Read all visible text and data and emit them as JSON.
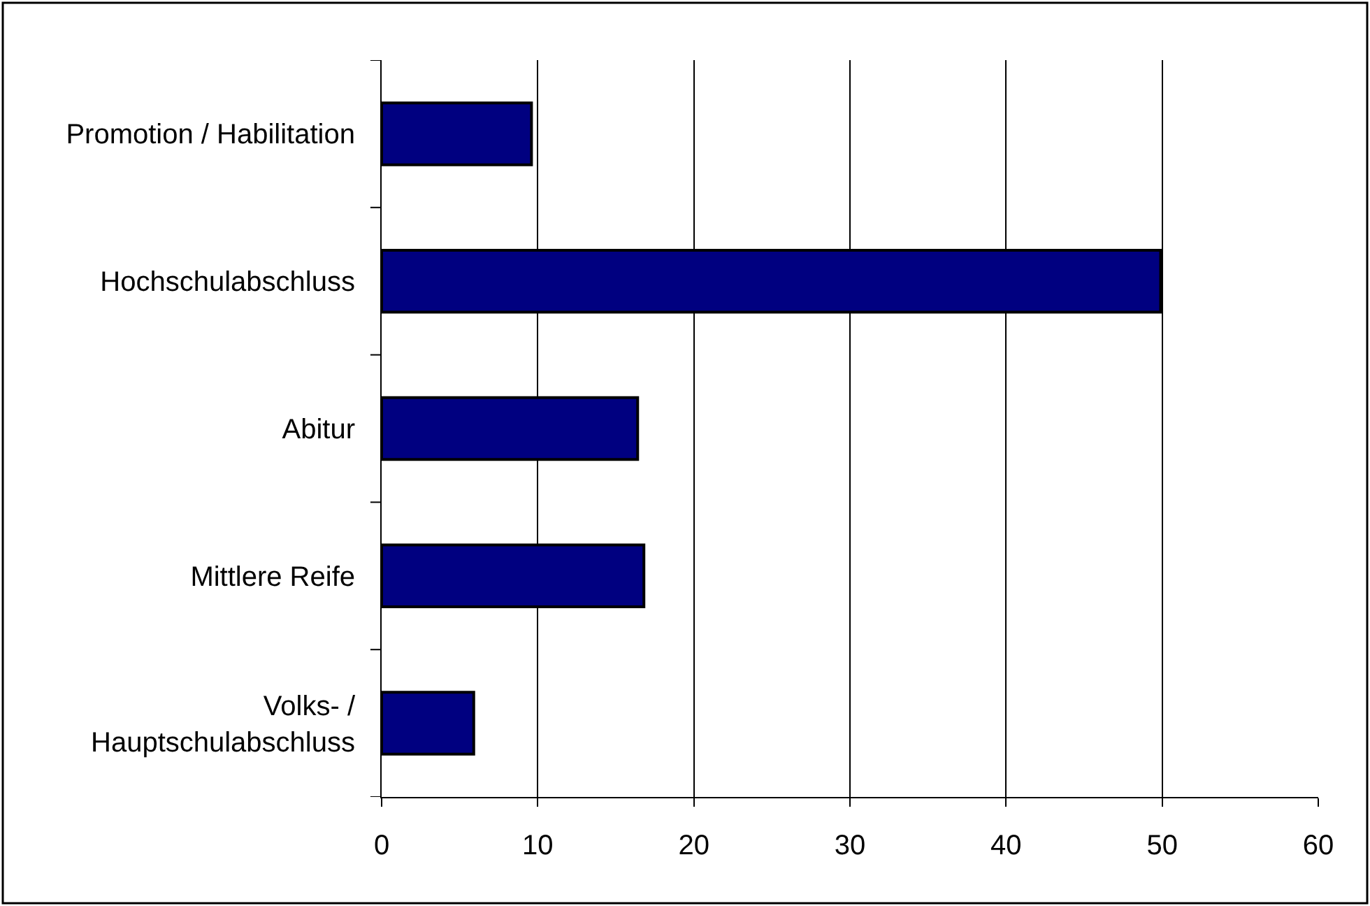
{
  "chart_data": {
    "type": "bar",
    "orientation": "horizontal",
    "categories": [
      "Promotion / Habilitation",
      "Hochschulabschluss",
      "Abitur",
      "Mittlere Reife",
      "Volks- / Hauptschulabschluss"
    ],
    "values": [
      9.6,
      49.9,
      16.4,
      16.8,
      5.9
    ],
    "color": "#000080",
    "xlim": [
      0,
      60
    ],
    "xticks": [
      0,
      10,
      20,
      30,
      40,
      50,
      60
    ],
    "grid": "x",
    "legend": false
  }
}
